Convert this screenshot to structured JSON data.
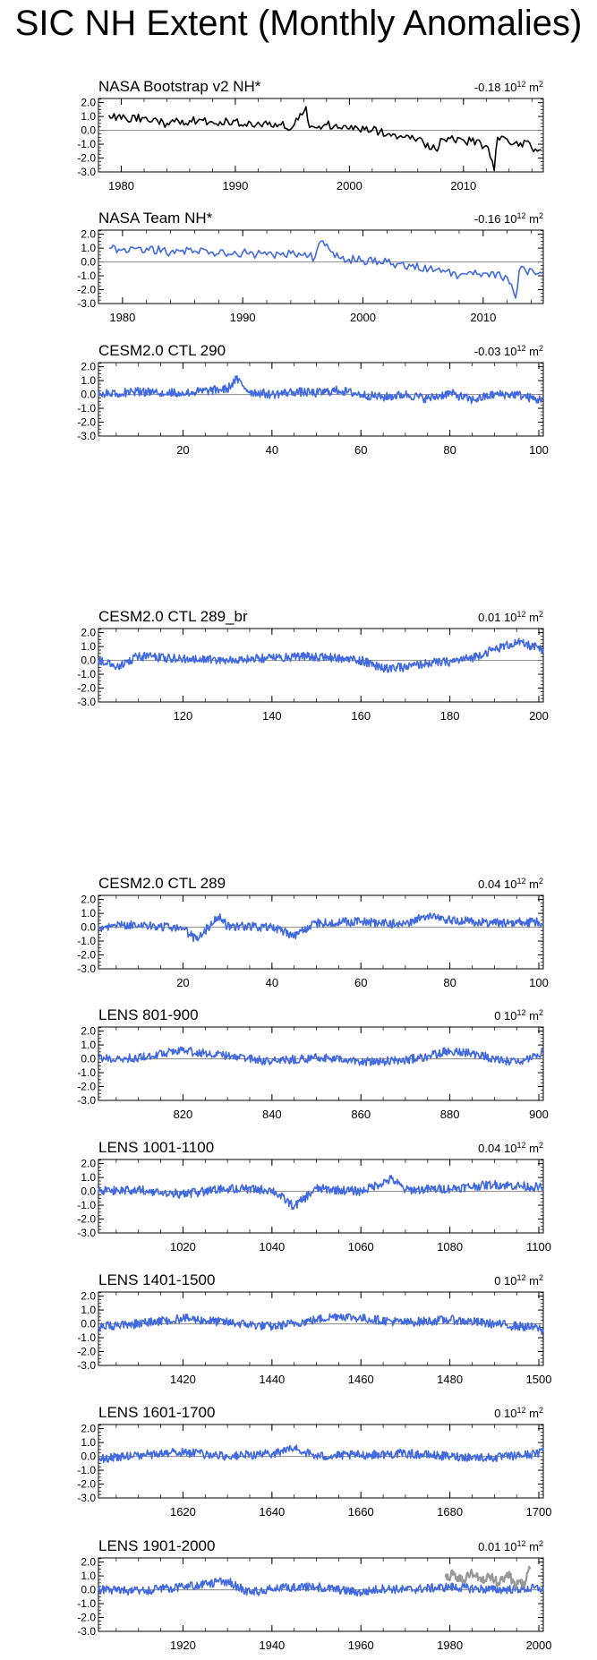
{
  "title": "SIC NH Extent (Monthly Anomalies)",
  "colors": {
    "obs": "#000000",
    "model": "#4169e1",
    "overlay": "#999999",
    "zero": "#888888"
  },
  "chart_data": [
    {
      "type": "line",
      "title": "NASA Bootstrap v2 NH*",
      "trend_value": "-0.18",
      "trend_unit_base": "10",
      "trend_unit_exp": "12",
      "trend_unit_suffix": " m",
      "trend_unit_suffix_exp": "2",
      "xlim": [
        1978,
        2017
      ],
      "ylim": [
        -3.0,
        2.3
      ],
      "yticks": [
        "2.0",
        "1.0",
        "0.0",
        "-1.0",
        "-2.0",
        "-3.0"
      ],
      "xticks": [
        "1980",
        "1990",
        "2000",
        "2010"
      ],
      "series": [
        {
          "color": "obs",
          "x": [
            1978.9,
            1980,
            1982,
            1984,
            1986,
            1988,
            1990,
            1991.5,
            1993,
            1995,
            1996.2,
            1996.5,
            1998,
            2000,
            2002,
            2004,
            2006,
            2007.7,
            2008,
            2010,
            2012,
            2012.7,
            2013,
            2015,
            2016.8
          ],
          "y": [
            1.1,
            0.8,
            0.9,
            0.5,
            0.7,
            0.6,
            0.7,
            0.3,
            0.6,
            0.2,
            1.7,
            0.2,
            0.4,
            0.1,
            0.0,
            -0.3,
            -0.6,
            -1.5,
            -0.6,
            -0.7,
            -1.1,
            -2.9,
            -0.5,
            -0.9,
            -1.4
          ]
        }
      ]
    },
    {
      "type": "line",
      "title": "NASA Team NH*",
      "trend_value": "-0.16",
      "trend_unit_base": "10",
      "trend_unit_exp": "12",
      "trend_unit_suffix": " m",
      "trend_unit_suffix_exp": "2",
      "xlim": [
        1978,
        2015
      ],
      "ylim": [
        -3.0,
        2.3
      ],
      "yticks": [
        "2.0",
        "1.0",
        "0.0",
        "-1.0",
        "-2.0",
        "-3.0"
      ],
      "xticks": [
        "1980",
        "1990",
        "2000",
        "2010"
      ],
      "series": [
        {
          "color": "model",
          "x": [
            1978.9,
            1980,
            1982,
            1984,
            1986,
            1988,
            1990,
            1992,
            1994,
            1996,
            1996.5,
            1998,
            2000,
            2002,
            2004,
            2006,
            2008,
            2010,
            2012,
            2012.7,
            2013,
            2014.9
          ],
          "y": [
            1.0,
            0.9,
            1.0,
            0.7,
            0.8,
            0.6,
            0.7,
            0.5,
            0.6,
            0.3,
            1.5,
            0.3,
            0.1,
            0.0,
            -0.3,
            -0.6,
            -1.0,
            -0.8,
            -1.1,
            -2.6,
            -0.6,
            -0.8
          ]
        }
      ]
    },
    {
      "type": "line",
      "title": "CESM2.0 CTL 290",
      "trend_value": "-0.03",
      "trend_unit_base": "10",
      "trend_unit_exp": "12",
      "trend_unit_suffix": " m",
      "trend_unit_suffix_exp": "2",
      "xlim": [
        1,
        101
      ],
      "ylim": [
        -3.0,
        2.3
      ],
      "yticks": [
        "2.0",
        "1.0",
        "0.0",
        "-1.0",
        "-2.0",
        "-3.0"
      ],
      "xticks": [
        "20",
        "40",
        "60",
        "80",
        "100"
      ],
      "series": [
        {
          "color": "model",
          "x": [
            1,
            10,
            20,
            30,
            32,
            35,
            40,
            45,
            50,
            55,
            60,
            65,
            70,
            75,
            80,
            85,
            90,
            95,
            100,
            101
          ],
          "y": [
            0.0,
            0.2,
            0.1,
            0.4,
            1.1,
            0.2,
            0.0,
            0.2,
            0.1,
            0.3,
            0.0,
            -0.2,
            0.0,
            -0.3,
            0.1,
            -0.4,
            0.0,
            0.0,
            -0.4,
            -0.2
          ]
        }
      ]
    },
    {
      "type": "line",
      "title": "CESM2.0 CTL 289_br",
      "trend_value": "0.01",
      "trend_unit_base": "10",
      "trend_unit_exp": "12",
      "trend_unit_suffix": " m",
      "trend_unit_suffix_exp": "2",
      "xlim": [
        101,
        201
      ],
      "ylim": [
        -3.0,
        2.3
      ],
      "yticks": [
        "2.0",
        "1.0",
        "0.0",
        "-1.0",
        "-2.0",
        "-3.0"
      ],
      "xticks": [
        "120",
        "140",
        "160",
        "180",
        "200"
      ],
      "series": [
        {
          "color": "model",
          "x": [
            101,
            105,
            110,
            120,
            130,
            140,
            150,
            160,
            165,
            170,
            175,
            180,
            185,
            190,
            195,
            200,
            201
          ],
          "y": [
            0.0,
            -0.5,
            0.3,
            0.1,
            0.0,
            0.2,
            0.3,
            0.0,
            -0.6,
            -0.5,
            -0.2,
            -0.1,
            0.2,
            0.8,
            1.3,
            0.9,
            0.5
          ]
        }
      ]
    },
    {
      "type": "line",
      "title": "CESM2.0 CTL 289",
      "trend_value": "0.04",
      "trend_unit_base": "10",
      "trend_unit_exp": "12",
      "trend_unit_suffix": " m",
      "trend_unit_suffix_exp": "2",
      "xlim": [
        1,
        101
      ],
      "ylim": [
        -3.0,
        2.3
      ],
      "yticks": [
        "2.0",
        "1.0",
        "0.0",
        "-1.0",
        "-2.0",
        "-3.0"
      ],
      "xticks": [
        "20",
        "40",
        "60",
        "80",
        "100"
      ],
      "series": [
        {
          "color": "model",
          "x": [
            1,
            10,
            20,
            23,
            28,
            30,
            40,
            45,
            50,
            60,
            70,
            75,
            80,
            90,
            100,
            101
          ],
          "y": [
            0.0,
            0.2,
            -0.1,
            -0.9,
            0.8,
            0.1,
            0.0,
            -0.6,
            0.3,
            0.4,
            0.2,
            0.9,
            0.5,
            0.3,
            0.4,
            0.2
          ]
        }
      ]
    },
    {
      "type": "line",
      "title": "LENS 801-900",
      "trend_value": "0",
      "trend_unit_base": "10",
      "trend_unit_exp": "12",
      "trend_unit_suffix": " m",
      "trend_unit_suffix_exp": "2",
      "xlim": [
        801,
        901
      ],
      "ylim": [
        -3.0,
        2.3
      ],
      "yticks": [
        "2.0",
        "1.0",
        "0.0",
        "-1.0",
        "-2.0",
        "-3.0"
      ],
      "xticks": [
        "820",
        "840",
        "860",
        "880",
        "900"
      ],
      "series": [
        {
          "color": "model",
          "x": [
            801,
            810,
            820,
            830,
            840,
            850,
            860,
            870,
            875,
            880,
            885,
            890,
            895,
            900,
            901
          ],
          "y": [
            0.0,
            0.1,
            0.6,
            0.2,
            -0.2,
            0.1,
            -0.2,
            -0.1,
            0.2,
            0.6,
            0.4,
            0.0,
            -0.3,
            0.2,
            0.6
          ]
        }
      ]
    },
    {
      "type": "line",
      "title": "LENS 1001-1100",
      "trend_value": "0.04",
      "trend_unit_base": "10",
      "trend_unit_exp": "12",
      "trend_unit_suffix": " m",
      "trend_unit_suffix_exp": "2",
      "xlim": [
        1001,
        1101
      ],
      "ylim": [
        -3.0,
        2.3
      ],
      "yticks": [
        "2.0",
        "1.0",
        "0.0",
        "-1.0",
        "-2.0",
        "-3.0"
      ],
      "xticks": [
        "1020",
        "1040",
        "1060",
        "1080",
        "1100"
      ],
      "series": [
        {
          "color": "model",
          "x": [
            1001,
            1010,
            1020,
            1030,
            1040,
            1045,
            1050,
            1060,
            1067,
            1070,
            1080,
            1090,
            1100,
            1101
          ],
          "y": [
            0.0,
            0.1,
            -0.2,
            0.2,
            0.1,
            -1.1,
            0.2,
            0.0,
            0.9,
            0.1,
            0.2,
            0.5,
            0.3,
            0.2
          ]
        }
      ]
    },
    {
      "type": "line",
      "title": "LENS 1401-1500",
      "trend_value": "0",
      "trend_unit_base": "10",
      "trend_unit_exp": "12",
      "trend_unit_suffix": " m",
      "trend_unit_suffix_exp": "2",
      "xlim": [
        1401,
        1501
      ],
      "ylim": [
        -3.0,
        2.3
      ],
      "yticks": [
        "2.0",
        "1.0",
        "0.0",
        "-1.0",
        "-2.0",
        "-3.0"
      ],
      "xticks": [
        "1420",
        "1440",
        "1460",
        "1480",
        "1500"
      ],
      "series": [
        {
          "color": "model",
          "x": [
            1401,
            1410,
            1420,
            1430,
            1440,
            1450,
            1455,
            1460,
            1470,
            1480,
            1490,
            1500,
            1501
          ],
          "y": [
            -0.2,
            0.0,
            0.4,
            0.1,
            -0.2,
            0.3,
            0.6,
            0.4,
            0.1,
            0.3,
            0.0,
            -0.3,
            -0.6
          ]
        }
      ]
    },
    {
      "type": "line",
      "title": "LENS 1601-1700",
      "trend_value": "0",
      "trend_unit_base": "10",
      "trend_unit_exp": "12",
      "trend_unit_suffix": " m",
      "trend_unit_suffix_exp": "2",
      "xlim": [
        1601,
        1701
      ],
      "ylim": [
        -3.0,
        2.3
      ],
      "yticks": [
        "2.0",
        "1.0",
        "0.0",
        "-1.0",
        "-2.0",
        "-3.0"
      ],
      "xticks": [
        "1620",
        "1640",
        "1660",
        "1680",
        "1700"
      ],
      "series": [
        {
          "color": "model",
          "x": [
            1601,
            1610,
            1620,
            1630,
            1640,
            1645,
            1650,
            1660,
            1670,
            1680,
            1690,
            1700,
            1701
          ],
          "y": [
            -0.2,
            0.1,
            0.3,
            0.0,
            0.2,
            0.6,
            0.0,
            0.1,
            0.2,
            0.0,
            -0.1,
            0.2,
            0.6
          ]
        }
      ]
    },
    {
      "type": "line",
      "title": "LENS 1901-2000",
      "trend_value": "0.01",
      "trend_unit_base": "10",
      "trend_unit_exp": "12",
      "trend_unit_suffix": " m",
      "trend_unit_suffix_exp": "2",
      "xlim": [
        1901,
        2001
      ],
      "ylim": [
        -3.0,
        2.3
      ],
      "yticks": [
        "2.0",
        "1.0",
        "0.0",
        "-1.0",
        "-2.0",
        "-3.0"
      ],
      "xticks": [
        "1920",
        "1940",
        "1960",
        "1980",
        "2000"
      ],
      "series": [
        {
          "color": "model",
          "x": [
            1901,
            1910,
            1920,
            1930,
            1935,
            1940,
            1950,
            1960,
            1965,
            1970,
            1980,
            1990,
            2000,
            2001
          ],
          "y": [
            0.0,
            -0.1,
            0.2,
            0.6,
            -0.2,
            0.1,
            0.2,
            -0.2,
            0.1,
            0.0,
            0.2,
            0.0,
            0.1,
            0.0
          ]
        },
        {
          "color": "overlay",
          "x": [
            1979,
            1981,
            1983,
            1985,
            1987,
            1989,
            1991,
            1993,
            1995,
            1997,
            1998
          ],
          "y": [
            0.9,
            1.1,
            0.7,
            1.2,
            0.6,
            1.0,
            0.5,
            1.1,
            0.3,
            0.6,
            1.5
          ]
        }
      ]
    }
  ]
}
